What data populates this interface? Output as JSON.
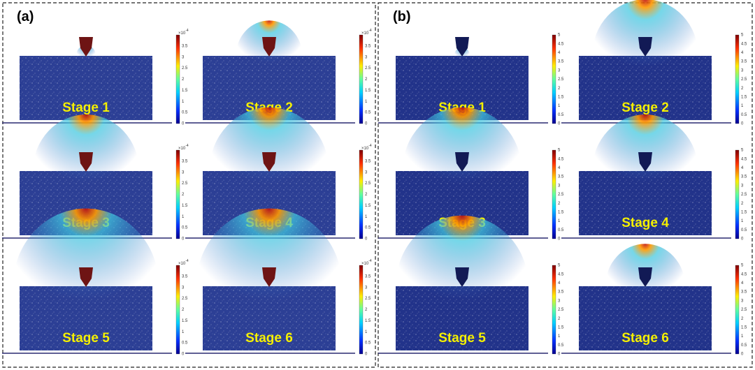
{
  "panels": [
    {
      "label": "(a)",
      "exponent": {
        "base": "×10",
        "power": "-4"
      },
      "colorbar_ticks": [
        0,
        0.5,
        1,
        1.5,
        2,
        2.5,
        3,
        3.5
      ],
      "stages": [
        "Stage 1",
        "Stage 2",
        "Stage 3",
        "Stage 4",
        "Stage 5",
        "Stage 6"
      ]
    },
    {
      "label": "(b)",
      "colorbar_ticks": [
        0,
        0.5,
        1,
        1.5,
        2,
        2.5,
        3,
        3.5,
        4,
        4.5,
        5
      ],
      "stages": [
        "Stage 1",
        "Stage 2",
        "Stage 3",
        "Stage 4",
        "Stage 5",
        "Stage 6"
      ]
    }
  ]
}
